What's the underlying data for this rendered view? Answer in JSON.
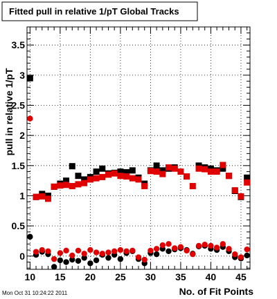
{
  "stamp": "Mon Oct 31 10:24:22 2011",
  "chart_data": {
    "type": "scatter",
    "title": "Fitted pull in relative 1/pT  Global Tracks",
    "xlabel": "No. of Fit Points",
    "ylabel": "pull in relative 1/pT",
    "xlim": [
      9.5,
      46.5
    ],
    "ylim": [
      -0.22,
      3.8
    ],
    "grid": true,
    "x_ticks": [
      10,
      15,
      20,
      25,
      30,
      35,
      40,
      45
    ],
    "x_tick_labels": [
      "10",
      "15",
      "20",
      "25",
      "30",
      "35",
      "40",
      "45"
    ],
    "y_ticks": [
      0,
      0.5,
      1,
      1.5,
      2,
      2.5,
      3,
      3.5
    ],
    "y_tick_labels": [
      "0",
      "0.5",
      "1",
      "1.5",
      "2",
      "2.5",
      "3",
      "3.5"
    ],
    "x": [
      10,
      11,
      12,
      13,
      14,
      15,
      16,
      17,
      18,
      19,
      20,
      21,
      22,
      23,
      24,
      25,
      26,
      27,
      28,
      29,
      30,
      31,
      32,
      33,
      34,
      35,
      36,
      37,
      38,
      39,
      40,
      41,
      42,
      43,
      44,
      45,
      46
    ],
    "series": [
      {
        "color": "#000000",
        "marker": "square",
        "values": [
          2.95,
          0.98,
          1.03,
          1.0,
          1.15,
          1.2,
          1.25,
          1.49,
          1.33,
          1.27,
          1.31,
          1.4,
          1.45,
          1.37,
          1.38,
          1.4,
          1.39,
          1.42,
          1.3,
          1.2,
          1.42,
          1.5,
          1.42,
          1.45,
          1.47,
          null,
          1.32,
          null,
          1.5,
          1.47,
          1.45,
          1.42,
          1.45,
          1.33,
          1.08,
          0.98,
          1.3
        ]
      },
      {
        "color": "#e00000",
        "marker": "square",
        "values": [
          null,
          0.98,
          0.99,
          0.95,
          1.15,
          1.17,
          1.18,
          1.16,
          1.19,
          1.21,
          1.27,
          1.29,
          1.31,
          1.35,
          1.37,
          1.33,
          1.32,
          1.29,
          1.27,
          1.16,
          1.41,
          1.4,
          1.36,
          1.47,
          1.45,
          1.4,
          1.32,
          1.16,
          1.45,
          1.44,
          1.4,
          1.4,
          1.51,
          1.33,
          1.09,
          0.99,
          1.22
        ]
      },
      {
        "color": "#000000",
        "marker": "circle",
        "values": [
          0.32,
          0.02,
          0.07,
          0.03,
          -0.18,
          -0.07,
          -0.1,
          -0.06,
          -0.08,
          -0.03,
          -0.12,
          -0.07,
          0.02,
          -0.03,
          0.02,
          -0.05,
          0.05,
          0.08,
          -0.05,
          -0.12,
          0.05,
          0.03,
          0.12,
          0.08,
          0.11,
          0.13,
          0.1,
          0.04,
          0.16,
          0.17,
          0.12,
          0.1,
          0.15,
          0.08,
          -0.02,
          -0.04,
          0.01
        ]
      },
      {
        "color": "#e00000",
        "marker": "circle",
        "values": [
          2.28,
          0.07,
          0.1,
          0.08,
          -0.05,
          0.05,
          0.09,
          0.01,
          0.09,
          0.04,
          0.1,
          0.06,
          0.04,
          0.06,
          0.08,
          0.1,
          0.08,
          0.09,
          -0.02,
          -0.06,
          0.09,
          0.12,
          0.18,
          0.2,
          0.13,
          0.15,
          0.09,
          0.03,
          0.17,
          0.19,
          0.17,
          0.14,
          0.2,
          0.12,
          0.03,
          -0.02,
          0.11
        ]
      }
    ]
  }
}
